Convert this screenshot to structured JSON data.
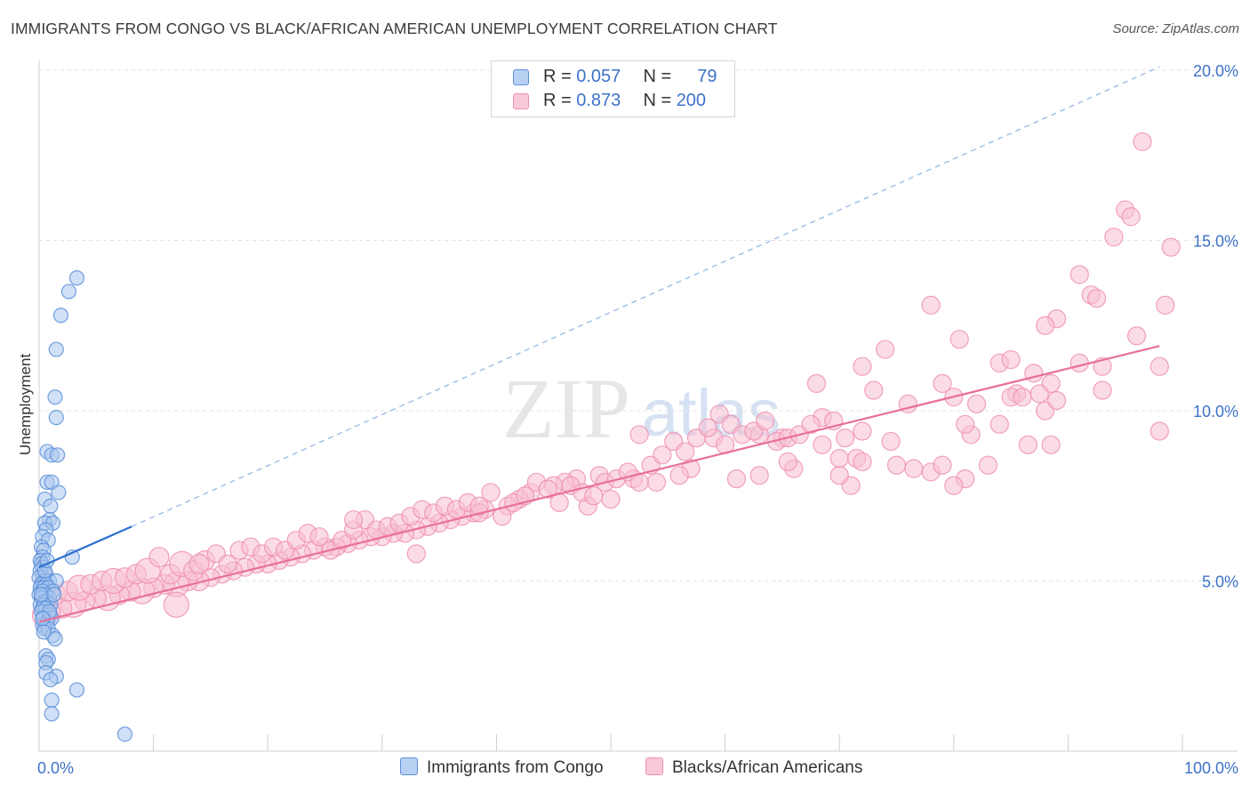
{
  "header": {
    "title": "IMMIGRANTS FROM CONGO VS BLACK/AFRICAN AMERICAN UNEMPLOYMENT CORRELATION CHART",
    "source": "Source: ZipAtlas.com"
  },
  "watermark": {
    "zip": "ZIP",
    "atlas": "atlas"
  },
  "legend": {
    "rows": [
      {
        "r_label": "R =",
        "r_value": "0.057",
        "n_label": "N =",
        "n_value": "79",
        "color": "#5b8fd9"
      },
      {
        "r_label": "R =",
        "r_value": "0.873",
        "n_label": "N =",
        "n_value": "200",
        "color": "#ee8fb0"
      }
    ]
  },
  "chart_data": {
    "type": "scatter",
    "title": "IMMIGRANTS FROM CONGO VS BLACK/AFRICAN AMERICAN UNEMPLOYMENT CORRELATION CHART",
    "xlabel": "",
    "ylabel": "Unemployment",
    "xlim": [
      0,
      100
    ],
    "ylim": [
      0,
      20.5
    ],
    "x_tick_labels": [
      "0.0%",
      "100.0%"
    ],
    "y_tick_labels": [
      "5.0%",
      "10.0%",
      "15.0%",
      "20.0%"
    ],
    "y_ticks": [
      5,
      10,
      15,
      20
    ],
    "grid": true,
    "legend_position": "top-center",
    "series": [
      {
        "name": "Immigrants from Congo",
        "color": "#5b8fd9",
        "fill": "#a9c6ef",
        "trend": {
          "x": [
            0,
            8.1
          ],
          "y": [
            5.4,
            6.6
          ]
        },
        "trend_extension": {
          "x": [
            8.1,
            98
          ],
          "y": [
            6.6,
            20.1
          ]
        },
        "points": [
          [
            3.3,
            13.9
          ],
          [
            2.6,
            13.5
          ],
          [
            1.9,
            12.8
          ],
          [
            1.5,
            11.8
          ],
          [
            1.4,
            10.4
          ],
          [
            1.5,
            9.8
          ],
          [
            0.7,
            8.8
          ],
          [
            1.1,
            8.7
          ],
          [
            1.6,
            8.7
          ],
          [
            0.7,
            7.9
          ],
          [
            1.1,
            7.9
          ],
          [
            1.7,
            7.6
          ],
          [
            0.5,
            7.4
          ],
          [
            1.0,
            7.2
          ],
          [
            0.9,
            6.8
          ],
          [
            0.5,
            6.7
          ],
          [
            1.2,
            6.7
          ],
          [
            0.6,
            6.5
          ],
          [
            0.3,
            6.3
          ],
          [
            0.8,
            6.2
          ],
          [
            0.2,
            6.0
          ],
          [
            0.4,
            5.9
          ],
          [
            0.3,
            5.7
          ],
          [
            0.1,
            5.6
          ],
          [
            2.9,
            5.7
          ],
          [
            0.2,
            5.5
          ],
          [
            0.3,
            5.4
          ],
          [
            0.1,
            5.3
          ],
          [
            0.6,
            5.2
          ],
          [
            0.3,
            5.1
          ],
          [
            0.0,
            5.1
          ],
          [
            0.5,
            5.0
          ],
          [
            0.9,
            5.0
          ],
          [
            1.5,
            5.0
          ],
          [
            0.2,
            4.9
          ],
          [
            0.6,
            4.9
          ],
          [
            0.1,
            4.8
          ],
          [
            0.4,
            4.8
          ],
          [
            0.8,
            4.8
          ],
          [
            1.2,
            4.7
          ],
          [
            0.3,
            4.7
          ],
          [
            0.0,
            4.6
          ],
          [
            0.6,
            4.6
          ],
          [
            0.9,
            4.5
          ],
          [
            0.2,
            4.5
          ],
          [
            0.5,
            4.4
          ],
          [
            0.7,
            4.4
          ],
          [
            0.1,
            4.3
          ],
          [
            0.4,
            4.3
          ],
          [
            1.0,
            4.3
          ],
          [
            0.3,
            4.2
          ],
          [
            0.6,
            4.2
          ],
          [
            0.2,
            4.1
          ],
          [
            0.9,
            4.0
          ],
          [
            0.4,
            3.9
          ],
          [
            1.1,
            3.9
          ],
          [
            0.7,
            3.8
          ],
          [
            0.3,
            3.7
          ],
          [
            0.5,
            3.6
          ],
          [
            0.8,
            3.6
          ],
          [
            1.2,
            3.4
          ],
          [
            1.4,
            3.3
          ],
          [
            0.4,
            3.5
          ],
          [
            0.6,
            2.8
          ],
          [
            0.8,
            2.7
          ],
          [
            0.6,
            2.6
          ],
          [
            0.6,
            2.3
          ],
          [
            1.5,
            2.2
          ],
          [
            1.0,
            2.1
          ],
          [
            3.3,
            1.8
          ],
          [
            1.1,
            1.5
          ],
          [
            1.1,
            1.1
          ],
          [
            7.5,
            0.5
          ],
          [
            0.2,
            4.6
          ],
          [
            0.5,
            5.3
          ],
          [
            0.9,
            4.1
          ],
          [
            0.3,
            3.9
          ],
          [
            1.3,
            4.6
          ],
          [
            0.7,
            5.6
          ]
        ]
      },
      {
        "name": "Blacks/African Americans",
        "color": "#ee8fb0",
        "fill": "#f7bfd2",
        "trend": {
          "x": [
            0,
            98
          ],
          "y": [
            3.8,
            11.9
          ]
        },
        "points": [
          [
            96.5,
            17.9
          ],
          [
            95,
            15.9
          ],
          [
            95.5,
            15.7
          ],
          [
            94,
            15.1
          ],
          [
            99,
            14.8
          ],
          [
            91,
            14.0
          ],
          [
            92,
            13.4
          ],
          [
            92.5,
            13.3
          ],
          [
            98.5,
            13.1
          ],
          [
            78,
            13.1
          ],
          [
            89,
            12.7
          ],
          [
            88,
            12.5
          ],
          [
            96,
            12.2
          ],
          [
            80.5,
            12.1
          ],
          [
            74,
            11.8
          ],
          [
            91,
            11.4
          ],
          [
            93,
            11.3
          ],
          [
            84,
            11.4
          ],
          [
            85,
            11.5
          ],
          [
            87,
            11.1
          ],
          [
            85.5,
            10.5
          ],
          [
            98,
            11.3
          ],
          [
            93,
            10.6
          ],
          [
            85,
            10.4
          ],
          [
            88.5,
            10.8
          ],
          [
            80,
            10.4
          ],
          [
            68,
            10.8
          ],
          [
            79,
            10.8
          ],
          [
            72,
            11.3
          ],
          [
            73,
            10.6
          ],
          [
            87.5,
            10.5
          ],
          [
            86,
            10.4
          ],
          [
            88,
            10.0
          ],
          [
            82,
            10.2
          ],
          [
            89,
            10.3
          ],
          [
            98,
            9.4
          ],
          [
            68.5,
            9.8
          ],
          [
            72,
            9.4
          ],
          [
            76,
            10.2
          ],
          [
            81.5,
            9.3
          ],
          [
            81,
            9.6
          ],
          [
            84,
            9.6
          ],
          [
            86.5,
            9.0
          ],
          [
            88.5,
            9.0
          ],
          [
            74.5,
            9.1
          ],
          [
            63,
            9.3
          ],
          [
            65,
            9.2
          ],
          [
            59,
            9.2
          ],
          [
            60,
            9.0
          ],
          [
            70,
            8.6
          ],
          [
            71.5,
            8.6
          ],
          [
            72,
            8.5
          ],
          [
            75,
            8.4
          ],
          [
            76.5,
            8.3
          ],
          [
            78,
            8.2
          ],
          [
            79,
            8.4
          ],
          [
            81,
            8.0
          ],
          [
            83,
            8.4
          ],
          [
            80,
            7.8
          ],
          [
            71,
            7.8
          ],
          [
            70,
            8.1
          ],
          [
            66,
            8.3
          ],
          [
            65.5,
            8.5
          ],
          [
            63,
            8.1
          ],
          [
            61,
            8.0
          ],
          [
            57,
            8.3
          ],
          [
            56,
            8.1
          ],
          [
            54,
            7.9
          ],
          [
            52,
            8.0
          ],
          [
            49,
            8.1
          ],
          [
            47,
            8.0
          ],
          [
            46,
            7.9
          ],
          [
            45,
            7.8
          ],
          [
            43,
            7.6
          ],
          [
            42,
            7.4
          ],
          [
            50,
            7.4
          ],
          [
            48,
            7.2
          ],
          [
            41,
            7.2
          ],
          [
            39,
            7.1
          ],
          [
            38,
            7.0
          ],
          [
            37,
            6.9
          ],
          [
            36,
            6.8
          ],
          [
            35,
            6.7
          ],
          [
            34,
            6.6
          ],
          [
            33,
            6.5
          ],
          [
            32,
            6.4
          ],
          [
            31,
            6.4
          ],
          [
            30,
            6.3
          ],
          [
            29,
            6.3
          ],
          [
            28,
            6.2
          ],
          [
            27,
            6.1
          ],
          [
            26,
            6.0
          ],
          [
            25,
            6.0
          ],
          [
            24,
            5.9
          ],
          [
            23,
            5.8
          ],
          [
            22,
            5.7
          ],
          [
            21,
            5.6
          ],
          [
            20,
            5.5
          ],
          [
            19,
            5.5
          ],
          [
            18,
            5.4
          ],
          [
            17,
            5.3
          ],
          [
            16,
            5.2
          ],
          [
            15,
            5.1
          ],
          [
            14,
            5.0
          ],
          [
            13,
            5.0
          ],
          [
            12,
            4.9
          ],
          [
            11,
            4.9
          ],
          [
            10,
            4.8
          ],
          [
            9,
            4.7
          ],
          [
            8,
            4.7
          ],
          [
            7,
            4.6
          ],
          [
            6,
            4.5
          ],
          [
            5,
            4.5
          ],
          [
            4,
            4.4
          ],
          [
            3,
            4.3
          ],
          [
            2,
            4.2
          ],
          [
            1,
            4.1
          ],
          [
            0.5,
            4.0
          ],
          [
            1.5,
            4.6
          ],
          [
            2.5,
            4.7
          ],
          [
            3.5,
            4.8
          ],
          [
            4.5,
            4.9
          ],
          [
            5.5,
            5.0
          ],
          [
            6.5,
            5.0
          ],
          [
            7.5,
            5.1
          ],
          [
            8.5,
            5.2
          ],
          [
            9.5,
            5.3
          ],
          [
            10.5,
            5.7
          ],
          [
            11.5,
            5.2
          ],
          [
            12.5,
            5.5
          ],
          [
            13.5,
            5.3
          ],
          [
            14.5,
            5.6
          ],
          [
            15.5,
            5.8
          ],
          [
            16.5,
            5.5
          ],
          [
            17.5,
            5.9
          ],
          [
            18.5,
            6.0
          ],
          [
            19.5,
            5.8
          ],
          [
            20.5,
            6.0
          ],
          [
            21.5,
            5.9
          ],
          [
            22.5,
            6.2
          ],
          [
            23.5,
            6.4
          ],
          [
            24.5,
            6.3
          ],
          [
            25.5,
            5.9
          ],
          [
            26.5,
            6.2
          ],
          [
            27.5,
            6.5
          ],
          [
            28.5,
            6.8
          ],
          [
            29.5,
            6.5
          ],
          [
            30.5,
            6.6
          ],
          [
            31.5,
            6.7
          ],
          [
            32.5,
            6.9
          ],
          [
            33.5,
            7.1
          ],
          [
            34.5,
            7.0
          ],
          [
            35.5,
            7.2
          ],
          [
            36.5,
            7.1
          ],
          [
            37.5,
            7.3
          ],
          [
            38.5,
            7.0
          ],
          [
            39.5,
            7.6
          ],
          [
            40.5,
            6.9
          ],
          [
            41.5,
            7.3
          ],
          [
            42.5,
            7.5
          ],
          [
            43.5,
            7.9
          ],
          [
            44.5,
            7.7
          ],
          [
            45.5,
            7.3
          ],
          [
            46.5,
            7.8
          ],
          [
            47.5,
            7.6
          ],
          [
            48.5,
            7.5
          ],
          [
            49.5,
            7.9
          ],
          [
            50.5,
            8.0
          ],
          [
            51.5,
            8.2
          ],
          [
            52.5,
            7.9
          ],
          [
            53.5,
            8.4
          ],
          [
            54.5,
            8.7
          ],
          [
            55.5,
            9.1
          ],
          [
            56.5,
            8.8
          ],
          [
            57.5,
            9.2
          ],
          [
            58.5,
            9.5
          ],
          [
            59.5,
            9.9
          ],
          [
            60.5,
            9.6
          ],
          [
            61.5,
            9.3
          ],
          [
            62.5,
            9.4
          ],
          [
            63.5,
            9.7
          ],
          [
            64.5,
            9.1
          ],
          [
            65.5,
            9.2
          ],
          [
            66.5,
            9.3
          ],
          [
            67.5,
            9.6
          ],
          [
            68.5,
            9.0
          ],
          [
            69.5,
            9.7
          ],
          [
            70.5,
            9.2
          ],
          [
            52.5,
            9.3
          ],
          [
            12,
            4.3
          ],
          [
            14,
            5.5
          ],
          [
            27.5,
            6.8
          ],
          [
            38.5,
            7.2
          ],
          [
            33,
            5.8
          ]
        ]
      }
    ]
  },
  "bottom_legend": {
    "items": [
      {
        "label": "Immigrants from Congo",
        "color": "#5b8fd9",
        "fill": "#a9c6ef"
      },
      {
        "label": "Blacks/African Americans",
        "color": "#ee8fb0",
        "fill": "#f7bfd2"
      }
    ]
  }
}
